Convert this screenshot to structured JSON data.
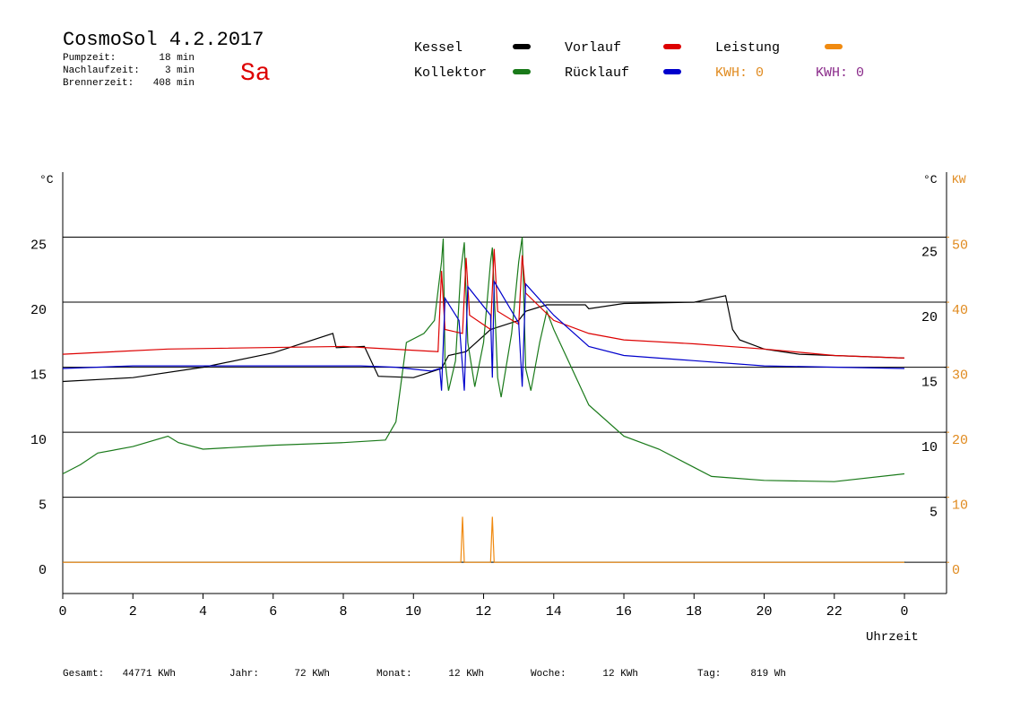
{
  "header": {
    "title": "CosmoSol 4.2.2017",
    "day": "Sa",
    "stats": [
      {
        "label": "Pumpzeit:",
        "value": "18 min"
      },
      {
        "label": "Nachlaufzeit:",
        "value": "3 min"
      },
      {
        "label": "Brennerzeit:",
        "value": "408 min"
      }
    ]
  },
  "kwh": [
    {
      "text": "KWH: 0",
      "color": "#e08a1e"
    },
    {
      "text": "KWH: 0",
      "color": "#8a2a8a"
    }
  ],
  "footer": [
    {
      "label": "Gesamt:",
      "value": "44771 KWh"
    },
    {
      "label": "Jahr:",
      "value": "72 KWh"
    },
    {
      "label": "Monat:",
      "value": "12 KWh"
    },
    {
      "label": "Woche:",
      "value": "12 KWh"
    },
    {
      "label": "Tag:",
      "value": "819 Wh"
    }
  ],
  "chart_data": {
    "type": "line",
    "x_label": "Uhrzeit",
    "y_label": "°C",
    "y_right_label": "°C",
    "y2_label": "KW",
    "xlim": [
      0,
      25.2
    ],
    "xticks": [
      0,
      2,
      4,
      6,
      8,
      10,
      12,
      14,
      16,
      18,
      20,
      22,
      {
        "value": 24,
        "label": "0"
      }
    ],
    "ylim": [
      -2.4,
      30
    ],
    "yticks": [
      0,
      5,
      10,
      15,
      20,
      25
    ],
    "y_right_ticks": [
      5,
      10,
      15,
      20,
      25
    ],
    "y2lim": [
      -4.8,
      60
    ],
    "y2ticks": [
      0,
      10,
      20,
      30,
      40,
      50
    ],
    "grid": true,
    "series": [
      {
        "name": "Kessel",
        "color": "#000000",
        "x": [
          0,
          2,
          4,
          6,
          7.7,
          7.8,
          8.6,
          9,
          10,
          10.8,
          11,
          11.5,
          12.2,
          13,
          13.2,
          13.8,
          14.9,
          15,
          16,
          18,
          18.9,
          19.1,
          19.3,
          20,
          21,
          24
        ],
        "values": [
          13.9,
          14.2,
          15,
          16.1,
          17.6,
          16.5,
          16.6,
          14.3,
          14.2,
          14.9,
          15.9,
          16.2,
          17.9,
          18.6,
          19.3,
          19.8,
          19.8,
          19.5,
          19.9,
          20,
          20.5,
          17.9,
          17.1,
          16.4,
          16,
          15.7
        ]
      },
      {
        "name": "Kollektor",
        "color": "#1a7a1a",
        "x": [
          0,
          0.5,
          1,
          2,
          3,
          3.3,
          4,
          6,
          8,
          9.2,
          9.5,
          9.8,
          10.3,
          10.6,
          10.8,
          10.85,
          10.9,
          11,
          11.2,
          11.35,
          11.45,
          11.55,
          11.75,
          12,
          12.2,
          12.25,
          12.4,
          12.5,
          12.8,
          13,
          13.1,
          13.2,
          13.35,
          13.6,
          13.8,
          14,
          15,
          16,
          17,
          18,
          18.5,
          19,
          20,
          22,
          24
        ],
        "values": [
          6.8,
          7.5,
          8.4,
          8.9,
          9.7,
          9.2,
          8.7,
          9,
          9.2,
          9.4,
          10.8,
          16.9,
          17.6,
          18.6,
          23.1,
          24.9,
          15.5,
          13.2,
          15.5,
          22.4,
          24.6,
          16.9,
          13.5,
          16.9,
          23.1,
          24.2,
          14.2,
          12.7,
          17.6,
          23.1,
          25,
          14.9,
          13.2,
          16.9,
          19.3,
          17.9,
          12.1,
          9.7,
          8.7,
          7.3,
          6.6,
          6.5,
          6.3,
          6.2,
          6.8
        ]
      },
      {
        "name": "Vorlauf",
        "color": "#dd0000",
        "x": [
          0,
          3,
          8,
          10.7,
          10.8,
          10.9,
          11.4,
          11.5,
          11.6,
          12.2,
          12.3,
          12.4,
          13,
          13.1,
          13.2,
          14,
          15,
          16,
          18,
          20,
          22,
          24
        ],
        "values": [
          16,
          16.4,
          16.6,
          16.2,
          22.4,
          17.9,
          17.6,
          23.4,
          19,
          17.9,
          24.1,
          19.3,
          18.3,
          23.6,
          20.7,
          18.6,
          17.6,
          17.1,
          16.8,
          16.4,
          15.9,
          15.7
        ]
      },
      {
        "name": "Rücklauf",
        "color": "#0000cc",
        "x": [
          0,
          2,
          8.5,
          9.5,
          10.5,
          10.75,
          10.8,
          10.9,
          11.3,
          11.45,
          11.55,
          12.2,
          12.25,
          12.3,
          13,
          13.1,
          13.2,
          14,
          15,
          16,
          18,
          20,
          24
        ],
        "values": [
          14.9,
          15.1,
          15.1,
          15,
          14.7,
          14.9,
          13.2,
          20.3,
          18.6,
          13.2,
          21.2,
          19,
          14.2,
          21.6,
          18.4,
          13.5,
          21.4,
          19,
          16.6,
          15.9,
          15.5,
          15.1,
          14.9
        ]
      },
      {
        "name": "Leistung",
        "color": "#f08a10",
        "axis": "y2",
        "x": [
          0,
          11.35,
          11.4,
          11.45,
          12.2,
          12.25,
          12.3,
          24
        ],
        "values": [
          0,
          0,
          7,
          0,
          0,
          7,
          0,
          0
        ]
      }
    ]
  }
}
